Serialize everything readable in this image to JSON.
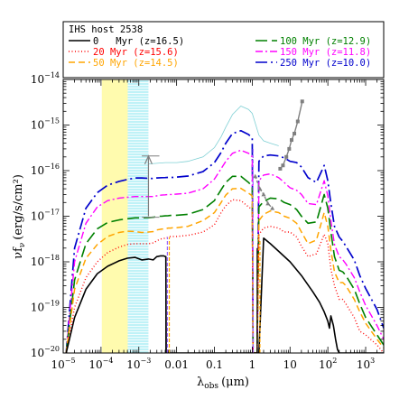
{
  "chart_data": {
    "type": "line",
    "legend_title": "IHS host 2538",
    "legend_placement": "top",
    "xlabel_main": "λ",
    "xlabel_sub": "obs",
    "xlabel_unit": "(μm)",
    "ylabel_main": "νf",
    "ylabel_sub": "ν",
    "ylabel_unit": "(erg/s/cm²)",
    "xscale": "log",
    "yscale": "log",
    "xlim": [
      1e-05,
      3000
    ],
    "ylim": [
      1e-20,
      1e-14
    ],
    "x_ticks": [
      {
        "v": 1e-05,
        "base": "10",
        "exp": "−5"
      },
      {
        "v": 0.0001,
        "base": "10",
        "exp": "−4"
      },
      {
        "v": 0.001,
        "base": "10",
        "exp": "−3"
      },
      {
        "v": 0.01,
        "base": "0.01",
        "exp": ""
      },
      {
        "v": 0.1,
        "base": "0.1",
        "exp": ""
      },
      {
        "v": 1,
        "base": "1",
        "exp": ""
      },
      {
        "v": 10,
        "base": "10",
        "exp": ""
      },
      {
        "v": 100,
        "base": "10",
        "exp": "2"
      },
      {
        "v": 1000,
        "base": "10",
        "exp": "3"
      }
    ],
    "y_ticks": [
      {
        "v": 1e-20,
        "base": "10",
        "exp": "−20"
      },
      {
        "v": 1e-19,
        "base": "10",
        "exp": "−19"
      },
      {
        "v": 1e-18,
        "base": "10",
        "exp": "−18"
      },
      {
        "v": 1e-17,
        "base": "10",
        "exp": "−17"
      },
      {
        "v": 1e-16,
        "base": "10",
        "exp": "−16"
      },
      {
        "v": 1e-15,
        "base": "10",
        "exp": "−15"
      },
      {
        "v": 1e-14,
        "base": "10",
        "exp": "−14"
      }
    ],
    "bands": [
      {
        "x0": 0.000105,
        "x1": 0.00051,
        "color": "#fffbae",
        "hatch": false
      },
      {
        "x0": 0.00051,
        "x1": 0.0018,
        "color": "#bff2f7",
        "hatch": true
      }
    ],
    "series": [
      {
        "name": "0 Myr (z=16.5)",
        "color": "#000000",
        "dash": "",
        "width": 1.6,
        "x": [
          1.2e-05,
          2e-05,
          4e-05,
          8e-05,
          0.00015,
          0.0003,
          0.0005,
          0.0008,
          0.0012,
          0.0018,
          0.0024,
          0.003,
          0.0031,
          0.0038,
          0.0046,
          0.005,
          0.0052,
          0.0053,
          0.0054,
          0.0055,
          0.0056,
          0.006,
          0.007,
          0.0072,
          0.009,
          0.02,
          0.05,
          0.1,
          0.3,
          0.6,
          1.0,
          1.2,
          1.3,
          1.35,
          1.4,
          1.45,
          1.5,
          2,
          3,
          5,
          10,
          20,
          40,
          60,
          80,
          100,
          110,
          120,
          140,
          160,
          180,
          200,
          250,
          300,
          400,
          500,
          700,
          1000,
          2000,
          3000
        ],
        "y": [
          1e-20,
          6e-20,
          2.5e-19,
          5.5e-19,
          8e-19,
          1.05e-18,
          1.2e-18,
          1.25e-18,
          1.1e-18,
          1.15e-18,
          1.1e-18,
          1.3e-18,
          1.3e-18,
          1.35e-18,
          1.35e-18,
          1.3e-18,
          1.3e-18,
          1e-20,
          1e-20,
          1e-20,
          1e-20,
          1e-20,
          1e-20,
          1e-20,
          1e-20,
          1e-20,
          1e-20,
          1e-20,
          1e-20,
          1e-20,
          1e-20,
          1e-20,
          1e-20,
          1e-20,
          1e-20,
          1e-20,
          1e-20,
          3.3e-18,
          2.5e-18,
          1.7e-18,
          1e-18,
          5e-19,
          2.2e-19,
          1.3e-19,
          8e-20,
          5e-20,
          3.5e-20,
          6.5e-20,
          4e-20,
          2e-20,
          1.2e-20,
          1e-20,
          1e-20,
          1e-20,
          1e-20,
          1e-20,
          1e-20,
          1e-20,
          1e-20,
          1e-20
        ]
      },
      {
        "name": "20 Myr (z=15.6)",
        "color": "#ff0000",
        "dash": "1,2.5",
        "width": 1.4,
        "x": [
          1.2e-05,
          2e-05,
          4e-05,
          8e-05,
          0.00015,
          0.0003,
          0.0005,
          0.0008,
          0.0012,
          0.0018,
          0.0025,
          0.003,
          0.004,
          0.005,
          0.0052,
          0.0053,
          0.006,
          0.007,
          0.008,
          0.01,
          0.02,
          0.05,
          0.1,
          0.15,
          0.2,
          0.3,
          0.5,
          0.8,
          1.0,
          1.05,
          1.1,
          1.2,
          1.35,
          1.5,
          2,
          3,
          5,
          7,
          10,
          15,
          20,
          30,
          50,
          80,
          100,
          120,
          150,
          200,
          250,
          300,
          500,
          700,
          1000,
          2000,
          3000
        ],
        "y": [
          1e-20,
          1e-19,
          4.5e-19,
          1e-18,
          1.6e-18,
          2.1e-18,
          2.4e-18,
          2.5e-18,
          2.5e-18,
          2.5e-18,
          2.6e-18,
          2.9e-18,
          3.2e-18,
          3.3e-18,
          3.3e-18,
          3.3e-18,
          3.5e-18,
          3.6e-18,
          3.6e-18,
          3.6e-18,
          3.8e-18,
          4.5e-18,
          6.5e-18,
          1.2e-17,
          1.7e-17,
          2.3e-17,
          2.2e-17,
          1.6e-17,
          1.4e-17,
          1e-20,
          1e-20,
          1e-20,
          1e-20,
          4e-18,
          5.5e-18,
          6e-18,
          5.5e-18,
          4.5e-18,
          4.5e-18,
          3.5e-18,
          2.2e-18,
          1.3e-18,
          1.5e-18,
          4e-18,
          2.5e-18,
          7e-19,
          3e-19,
          1.5e-19,
          1.5e-19,
          1.2e-19,
          6e-20,
          3e-20,
          2.5e-20,
          1.5e-20,
          1e-20
        ]
      },
      {
        "name": "50 Myr (z=14.5)",
        "color": "#ffa500",
        "dash": "7,4",
        "width": 1.5,
        "x": [
          1.2e-05,
          2e-05,
          4e-05,
          8e-05,
          0.00015,
          0.0003,
          0.0005,
          0.0008,
          0.0012,
          0.0018,
          0.0025,
          0.003,
          0.004,
          0.005,
          0.006,
          0.007,
          0.008,
          0.01,
          0.02,
          0.05,
          0.1,
          0.15,
          0.2,
          0.3,
          0.5,
          0.8,
          1.0,
          1.05,
          1.1,
          1.2,
          1.35,
          1.5,
          2,
          3,
          5,
          7,
          10,
          15,
          20,
          30,
          50,
          80,
          100,
          120,
          150,
          200,
          250,
          300,
          500,
          700,
          1000,
          2000,
          3000
        ],
        "y": [
          1e-20,
          2.5e-19,
          1.2e-18,
          2.4e-18,
          3.6e-18,
          4.4e-18,
          4.7e-18,
          4.6e-18,
          4.4e-18,
          4.5e-18,
          4.6e-18,
          5e-18,
          5.2e-18,
          5.3e-18,
          5.5e-18,
          5.5e-18,
          5.6e-18,
          5.6e-18,
          6e-18,
          8e-18,
          1.2e-17,
          2e-17,
          2.9e-17,
          4e-17,
          4.1e-17,
          3.2e-17,
          2.8e-17,
          1e-20,
          1e-20,
          1e-20,
          1e-20,
          8e-18,
          1.1e-17,
          1.3e-17,
          1.2e-17,
          1e-17,
          9e-18,
          7e-18,
          4.5e-18,
          2.5e-18,
          3e-18,
          1.2e-17,
          6e-18,
          1.8e-18,
          6e-19,
          3.5e-19,
          3.5e-19,
          3e-19,
          1.5e-19,
          8e-20,
          4.5e-20,
          2e-20,
          1.3e-20
        ]
      },
      {
        "name": "100 Myr (z=12.9)",
        "color": "#008000",
        "dash": "13,5",
        "width": 1.6,
        "x": [
          1.2e-05,
          2e-05,
          4e-05,
          8e-05,
          0.00015,
          0.0003,
          0.0005,
          0.0008,
          0.0012,
          0.0018,
          0.0025,
          0.003,
          0.004,
          0.005,
          0.006,
          0.007,
          0.008,
          0.01,
          0.02,
          0.05,
          0.1,
          0.15,
          0.2,
          0.3,
          0.5,
          0.8,
          1.0,
          1.05,
          1.1,
          1.2,
          1.35,
          1.5,
          2,
          3,
          5,
          7,
          10,
          15,
          20,
          30,
          50,
          80,
          100,
          120,
          150,
          200,
          250,
          300,
          500,
          700,
          1000,
          2000,
          3000
        ],
        "y": [
          1e-20,
          4e-19,
          2.5e-18,
          5.3e-18,
          7.3e-18,
          8.3e-18,
          8.8e-18,
          9.2e-18,
          9.2e-18,
          9.3e-18,
          9.5e-18,
          1e-17,
          1e-17,
          1.02e-17,
          1.03e-17,
          1.04e-17,
          1.05e-17,
          1.05e-17,
          1.1e-17,
          1.4e-17,
          2.2e-17,
          3.8e-17,
          5.5e-17,
          7.5e-17,
          7.5e-17,
          5.5e-17,
          4.5e-17,
          1e-20,
          1e-20,
          1e-20,
          1e-20,
          1.6e-17,
          2.1e-17,
          2.5e-17,
          2.4e-17,
          2e-17,
          1.8e-17,
          1.4e-17,
          1e-17,
          7e-18,
          7.5e-18,
          3e-17,
          1.5e-17,
          4.5e-18,
          1.3e-18,
          6.5e-19,
          6e-19,
          5e-19,
          2.5e-19,
          1.2e-19,
          6e-20,
          2.5e-20,
          1.5e-20
        ]
      },
      {
        "name": "150 Myr (z=11.8)",
        "color": "#ff00ff",
        "dash": "8,3,2,3",
        "width": 1.4,
        "x": [
          1.2e-05,
          2e-05,
          4e-05,
          8e-05,
          0.00015,
          0.0003,
          0.0005,
          0.0008,
          0.0012,
          0.0018,
          0.0025,
          0.003,
          0.004,
          0.005,
          0.006,
          0.007,
          0.008,
          0.01,
          0.02,
          0.05,
          0.1,
          0.15,
          0.2,
          0.3,
          0.5,
          0.8,
          1.0,
          1.05,
          1.1,
          1.2,
          1.35,
          1.5,
          2,
          3,
          5,
          7,
          10,
          15,
          20,
          30,
          50,
          80,
          100,
          120,
          150,
          200,
          250,
          300,
          500,
          700,
          1000,
          2000,
          3000
        ],
        "y": [
          1e-20,
          1e-18,
          7e-18,
          1.6e-17,
          2.2e-17,
          2.5e-17,
          2.6e-17,
          2.7e-17,
          2.7e-17,
          2.7e-17,
          2.7e-17,
          2.8e-17,
          2.9e-17,
          2.95e-17,
          3e-17,
          3e-17,
          3e-17,
          3.05e-17,
          3.2e-17,
          4e-17,
          6.5e-17,
          1.1e-16,
          1.6e-16,
          2.4e-16,
          2.8e-16,
          2.4e-16,
          2e-16,
          1e-20,
          1e-20,
          1e-20,
          1e-20,
          6e-17,
          8e-17,
          8.5e-17,
          7e-17,
          5.5e-17,
          4.2e-17,
          3.7e-17,
          3e-17,
          1.9e-17,
          1.8e-17,
          6e-17,
          2.8e-17,
          8e-18,
          2.4e-18,
          1.3e-18,
          1.1e-18,
          9e-19,
          4.5e-19,
          2.2e-19,
          1.1e-19,
          4e-20,
          2e-20
        ]
      },
      {
        "name": "250 Myr (z=10.0)",
        "color": "#0000cc",
        "dash": "13,4,2,4",
        "width": 1.7,
        "x": [
          1.2e-05,
          2e-05,
          4e-05,
          8e-05,
          0.00015,
          0.0003,
          0.0005,
          0.0008,
          0.0012,
          0.0018,
          0.0025,
          0.003,
          0.004,
          0.005,
          0.006,
          0.007,
          0.008,
          0.01,
          0.02,
          0.05,
          0.1,
          0.15,
          0.2,
          0.3,
          0.5,
          0.8,
          1.0,
          1.05,
          1.1,
          1.2,
          1.35,
          1.5,
          2,
          3,
          5,
          7,
          10,
          15,
          20,
          30,
          50,
          80,
          100,
          120,
          150,
          200,
          250,
          300,
          500,
          700,
          1000,
          2000,
          3000
        ],
        "y": [
          1e-20,
          2e-18,
          1.5e-17,
          3.3e-17,
          4.8e-17,
          5.8e-17,
          6.4e-17,
          6.9e-17,
          6.9e-17,
          6.8e-17,
          6.7e-17,
          6.9e-17,
          7e-17,
          7.05e-17,
          7.1e-17,
          7.1e-17,
          7.1e-17,
          7.2e-17,
          7.6e-17,
          9.5e-17,
          1.5e-16,
          2.5e-16,
          4e-16,
          6.5e-16,
          7.5e-16,
          6.2e-16,
          5.2e-16,
          1e-20,
          1e-20,
          1e-20,
          1e-20,
          1.6e-16,
          2.1e-16,
          2.2e-16,
          2.1e-16,
          1.9e-16,
          1.6e-16,
          1.5e-16,
          1.2e-16,
          7e-17,
          5.5e-17,
          1.3e-16,
          6e-17,
          1.9e-17,
          6e-18,
          3.5e-18,
          2.8e-18,
          2.2e-18,
          1.1e-18,
          5e-19,
          2.6e-19,
          9e-20,
          3.5e-20
        ]
      }
    ],
    "extra_curves": [
      {
        "color": "#7fd0d4",
        "dash": "",
        "width": 0.8,
        "x": [
          0.0018,
          0.003,
          0.005,
          0.007,
          0.01,
          0.02,
          0.05,
          0.1,
          0.15,
          0.2,
          0.3,
          0.5,
          0.8,
          1.0,
          1.5,
          2,
          3,
          5
        ],
        "y": [
          1.4e-16,
          1.45e-16,
          1.5e-16,
          1.5e-16,
          1.5e-16,
          1.6e-16,
          2e-16,
          3.2e-16,
          5.5e-16,
          9e-16,
          1.7e-15,
          2.6e-15,
          2.2e-15,
          1.8e-15,
          6e-16,
          4.5e-16,
          4e-16,
          3.5e-16
        ]
      }
    ],
    "vlines": [
      {
        "x": 0.0052,
        "y0": 1e-20,
        "y1": 1.2e-18,
        "color": "#000000",
        "dash": ""
      },
      {
        "x": 0.0057,
        "y0": 1e-20,
        "y1": 3.5e-18,
        "color": "#9a62ff",
        "dash": "4,2"
      },
      {
        "x": 0.0064,
        "y0": 1e-20,
        "y1": 3.5e-18,
        "color": "#ffa500",
        "dash": "4,2"
      },
      {
        "x": 1.05,
        "y0": 1e-20,
        "y1": 3.3e-16,
        "color": "#9a62ff",
        "dash": "4,2"
      },
      {
        "x": 1.35,
        "y0": 1e-20,
        "y1": 2e-18,
        "color": "#000000",
        "dash": ""
      },
      {
        "x": 1.6,
        "y0": 1e-20,
        "y1": 3e-18,
        "color": "#ffa500",
        "dash": "4,2"
      }
    ],
    "segments": [
      {
        "x0": 0.0012,
        "y0": 2.1e-16,
        "x1": 0.0035,
        "y1": 2.1e-16,
        "color": "#7f7f7f"
      },
      {
        "x0": 0.0012,
        "y0": 9.5e-18,
        "x1": 0.0035,
        "y1": 9.5e-18,
        "color": "#7f7f7f"
      }
    ],
    "arrows": [
      {
        "x": 0.0018,
        "y0": 1e-17,
        "y1": 2.1e-16,
        "color": "#7f7f7f"
      }
    ],
    "gray_points": [
      {
        "name": "upper",
        "color": "#7f7f7f",
        "x": [
          5.5,
          6.5,
          8,
          9.5,
          11,
          13,
          16,
          21
        ],
        "y": [
          1.1e-16,
          1.3e-16,
          2e-16,
          3e-16,
          4.7e-16,
          6.5e-16,
          1.2e-15,
          3.3e-15
        ]
      },
      {
        "name": "lower",
        "color": "#7f7f7f",
        "x": [
          1.2,
          1.6,
          2.0,
          2.6,
          3.4
        ],
        "y": [
          7.5e-17,
          4e-17,
          3e-17,
          1.9e-17,
          1.5e-17
        ]
      }
    ],
    "legend": {
      "title": "IHS host 2538",
      "entries": [
        {
          "text": "0   Myr (z=16.5)",
          "color": "#000000",
          "dash": "",
          "col": 0,
          "row": 0
        },
        {
          "text": "20 Myr (z=15.6)",
          "color": "#ff0000",
          "dash": "1,2.5",
          "col": 0,
          "row": 1
        },
        {
          "text": "50 Myr (z=14.5)",
          "color": "#ffa500",
          "dash": "7,4",
          "col": 0,
          "row": 2
        },
        {
          "text": "100 Myr (z=12.9)",
          "color": "#008000",
          "dash": "13,5",
          "col": 1,
          "row": 0
        },
        {
          "text": "150 Myr (z=11.8)",
          "color": "#ff00ff",
          "dash": "8,3,2,3",
          "col": 1,
          "row": 1
        },
        {
          "text": "250 Myr (z=10.0)",
          "color": "#0000cc",
          "dash": "13,4,2,4",
          "col": 1,
          "row": 2
        }
      ]
    }
  }
}
